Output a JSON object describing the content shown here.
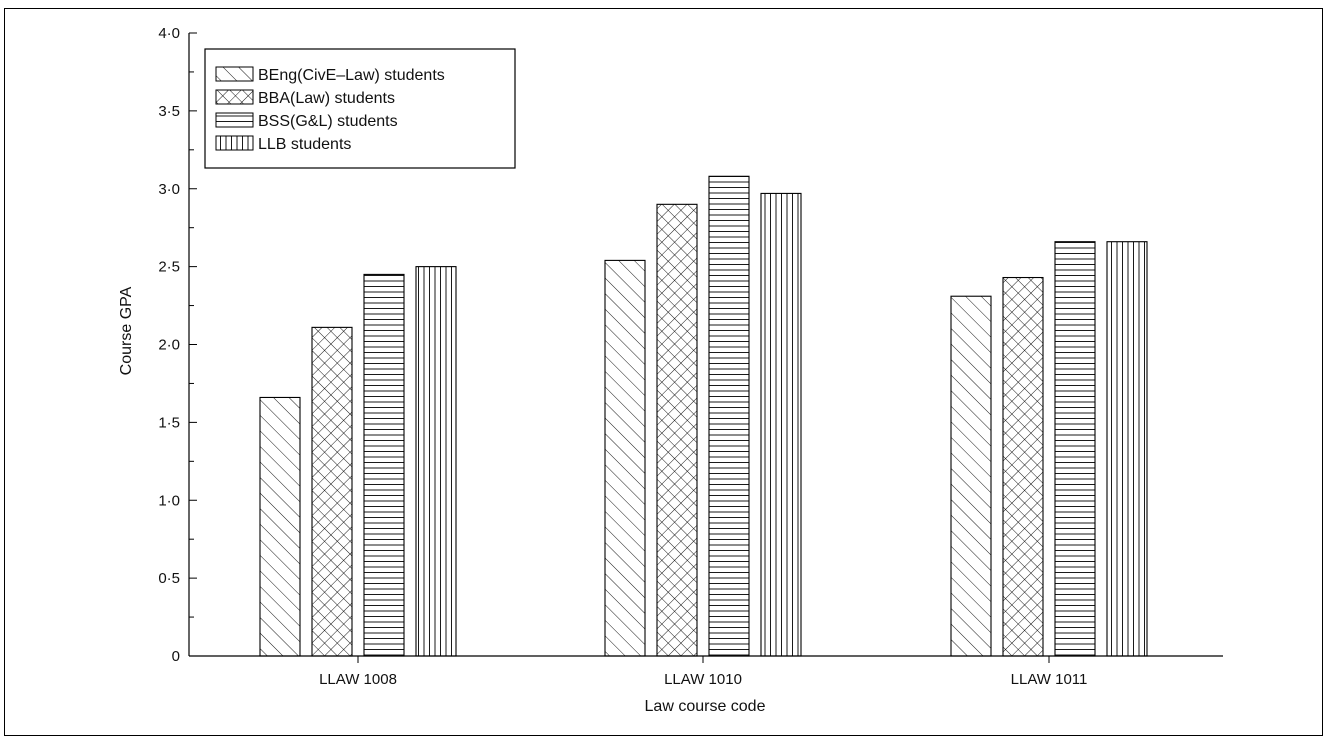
{
  "chart_data": {
    "type": "bar",
    "title": "",
    "xlabel": "Law course code",
    "ylabel": "Course GPA",
    "ylim": [
      0,
      4.0
    ],
    "yticks": [
      "0",
      "0·5",
      "1·0",
      "1·5",
      "2·0",
      "2·5",
      "3·0",
      "3·5",
      "4·0"
    ],
    "categories": [
      "LLAW 1008",
      "LLAW 1010",
      "LLAW 1011"
    ],
    "series": [
      {
        "name": "BEng(CivE–Law) students",
        "pattern": "diagonal-hatch",
        "values": [
          1.66,
          2.54,
          2.31
        ]
      },
      {
        "name": "BBA(Law) students",
        "pattern": "cross-hatch",
        "values": [
          2.11,
          2.9,
          2.43
        ]
      },
      {
        "name": "BSS(G&L) students",
        "pattern": "horizontal-lines",
        "values": [
          2.45,
          3.08,
          2.66
        ]
      },
      {
        "name": "LLB students",
        "pattern": "vertical-lines",
        "values": [
          2.5,
          2.97,
          2.66
        ]
      }
    ],
    "grid": false,
    "legend_position": "top-left",
    "colors": {
      "ink": "#000000",
      "background": "#ffffff"
    }
  }
}
